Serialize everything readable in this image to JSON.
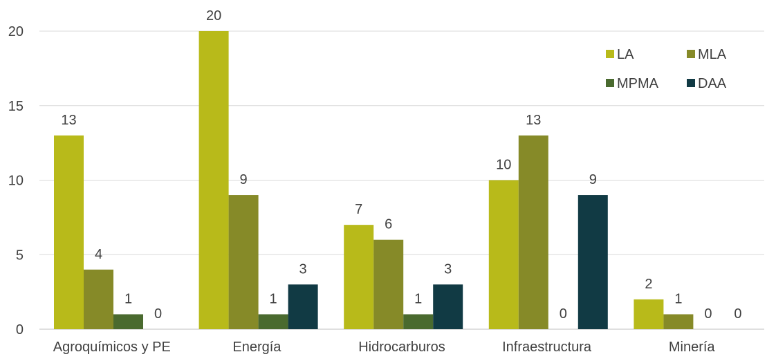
{
  "chart_data": {
    "type": "bar",
    "title": "",
    "xlabel": "",
    "ylabel": "",
    "categories": [
      "Agroquímicos y PE",
      "Energía",
      "Hidrocarburos",
      "Infraestructura",
      "Minería"
    ],
    "series": [
      {
        "name": "LA",
        "color": "#b8ba1a",
        "values": [
          13,
          20,
          7,
          10,
          2
        ]
      },
      {
        "name": "MLA",
        "color": "#868a28",
        "values": [
          4,
          9,
          6,
          13,
          1
        ]
      },
      {
        "name": "MPMA",
        "color": "#4a6a2f",
        "values": [
          1,
          1,
          1,
          0,
          0
        ]
      },
      {
        "name": "DAA",
        "color": "#113a44",
        "values": [
          0,
          3,
          3,
          9,
          0
        ]
      }
    ],
    "data_labels": [
      [
        "13",
        "4",
        "1",
        "0"
      ],
      [
        "20",
        "9",
        "1",
        "3"
      ],
      [
        "7",
        "6",
        "1",
        "3"
      ],
      [
        "10",
        "13",
        "0",
        "9"
      ],
      [
        "2",
        "1",
        "0",
        "0"
      ]
    ],
    "y_ticks": [
      "0",
      "5",
      "10",
      "15",
      "20"
    ],
    "ylim": [
      0,
      20
    ],
    "grid": true,
    "legend_position": "top-right"
  }
}
